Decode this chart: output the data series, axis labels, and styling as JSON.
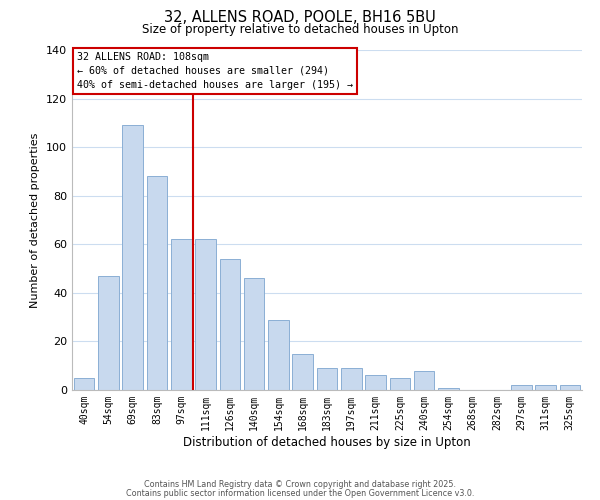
{
  "title": "32, ALLENS ROAD, POOLE, BH16 5BU",
  "subtitle": "Size of property relative to detached houses in Upton",
  "xlabel": "Distribution of detached houses by size in Upton",
  "ylabel": "Number of detached properties",
  "bar_color": "#c8d9ee",
  "bar_edge_color": "#8bafd4",
  "categories": [
    "40sqm",
    "54sqm",
    "69sqm",
    "83sqm",
    "97sqm",
    "111sqm",
    "126sqm",
    "140sqm",
    "154sqm",
    "168sqm",
    "183sqm",
    "197sqm",
    "211sqm",
    "225sqm",
    "240sqm",
    "254sqm",
    "268sqm",
    "282sqm",
    "297sqm",
    "311sqm",
    "325sqm"
  ],
  "values": [
    5,
    47,
    109,
    88,
    62,
    62,
    54,
    46,
    29,
    15,
    9,
    9,
    6,
    5,
    8,
    1,
    0,
    0,
    2,
    2,
    2
  ],
  "vline_x_index": 5,
  "vline_color": "#cc0000",
  "ylim": [
    0,
    140
  ],
  "yticks": [
    0,
    20,
    40,
    60,
    80,
    100,
    120,
    140
  ],
  "annotation_title": "32 ALLENS ROAD: 108sqm",
  "annotation_line1": "← 60% of detached houses are smaller (294)",
  "annotation_line2": "40% of semi-detached houses are larger (195) →",
  "footer1": "Contains HM Land Registry data © Crown copyright and database right 2025.",
  "footer2": "Contains public sector information licensed under the Open Government Licence v3.0.",
  "background_color": "#ffffff",
  "grid_color": "#ccddf0"
}
